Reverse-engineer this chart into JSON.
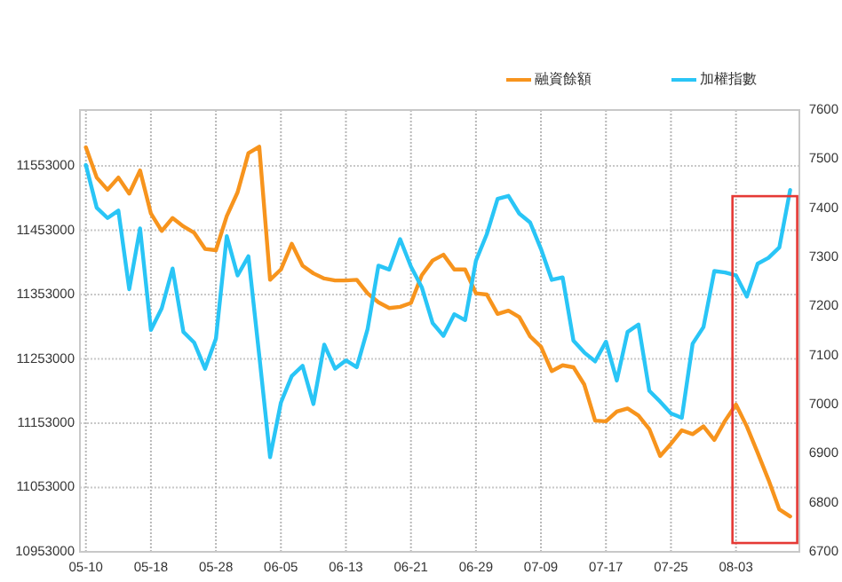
{
  "chart_data": {
    "type": "line",
    "categories": [
      "05-10",
      null,
      null,
      null,
      null,
      null,
      "05-18",
      null,
      null,
      null,
      null,
      null,
      "05-28",
      null,
      null,
      null,
      null,
      null,
      "06-05",
      null,
      null,
      null,
      null,
      null,
      "06-13",
      null,
      null,
      null,
      null,
      null,
      "06-21",
      null,
      null,
      null,
      null,
      null,
      "06-29",
      null,
      null,
      null,
      null,
      null,
      "07-09",
      null,
      null,
      null,
      null,
      null,
      "07-17",
      null,
      null,
      null,
      null,
      null,
      "07-25",
      null,
      null,
      null,
      null,
      null,
      "08-03",
      null,
      null,
      null,
      null,
      null
    ],
    "series": [
      {
        "name": "融資餘額",
        "color": "#f7941d",
        "values": [
          11582000,
          11535000,
          11516000,
          11535000,
          11510000,
          11546000,
          11479000,
          11452000,
          11472000,
          11459000,
          11449000,
          11424000,
          11422000,
          11475000,
          11512000,
          11573000,
          11583000,
          11376000,
          11392000,
          11432000,
          11398000,
          11386000,
          11378000,
          11375000,
          11375000,
          11376000,
          11355000,
          11341000,
          11332000,
          11334000,
          11340000,
          11383000,
          11406000,
          11415000,
          11392000,
          11392000,
          11355000,
          11353000,
          11323000,
          11328000,
          11318000,
          11288000,
          11272000,
          11234000,
          11243000,
          11240000,
          11213000,
          11157000,
          11156000,
          11171000,
          11176000,
          11165000,
          11144000,
          11102000,
          11121000,
          11142000,
          11136000,
          11148000,
          11127000,
          11157000,
          11182000,
          11148000,
          11107000,
          11065000,
          11019000,
          11008000
        ]
      },
      {
        "name": "加權指數",
        "color": "#29c5f6",
        "axis": "y2",
        "values": [
          7488,
          7401,
          7380,
          7395,
          7235,
          7359,
          7152,
          7196,
          7277,
          7148,
          7126,
          7073,
          7134,
          7343,
          7263,
          7302,
          7100,
          6893,
          7004,
          7058,
          7079,
          7001,
          7122,
          7073,
          7090,
          7076,
          7154,
          7283,
          7275,
          7337,
          7281,
          7239,
          7166,
          7140,
          7184,
          7172,
          7293,
          7347,
          7419,
          7425,
          7389,
          7371,
          7317,
          7254,
          7259,
          7130,
          7106,
          7088,
          7128,
          7049,
          7148,
          7163,
          7028,
          7006,
          6982,
          6973,
          7124,
          7158,
          7272,
          7269,
          7263,
          7220,
          7287,
          7299,
          7320,
          7437
        ]
      }
    ],
    "ylim": [
      10953000,
      11640000
    ],
    "yticks": [
      10953000,
      11053000,
      11153000,
      11253000,
      11353000,
      11453000,
      11553000
    ],
    "y2lim": [
      6700,
      7600
    ],
    "y2ticks": [
      6700,
      6800,
      6900,
      7000,
      7100,
      7200,
      7300,
      7400,
      7500,
      7600
    ],
    "grid": true,
    "legend": "top right",
    "line_style": "solid"
  }
}
